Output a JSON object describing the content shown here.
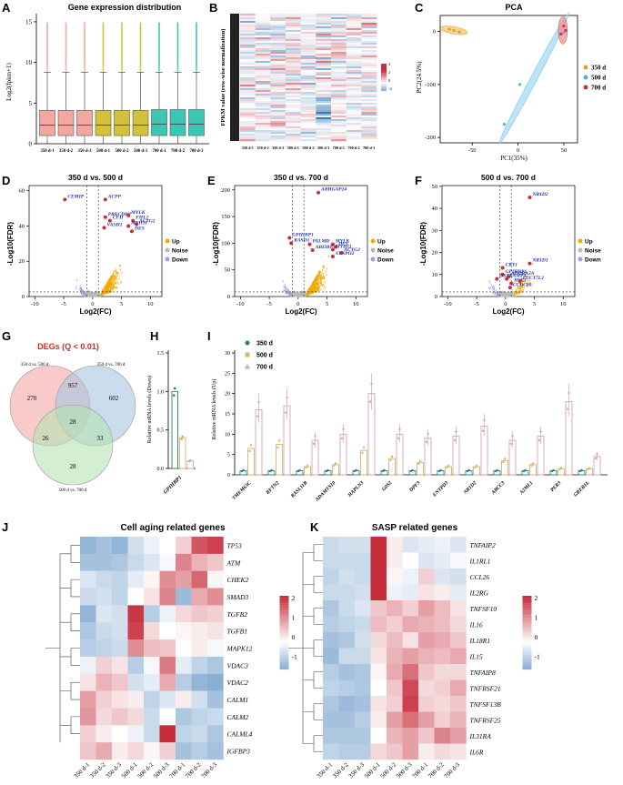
{
  "colors": {
    "s350": "#f4a6a0",
    "s500": "#d4c13a",
    "s700": "#3cc7b5",
    "up": "#f2a900",
    "noise": "#b8b8b8",
    "down": "#a89be0",
    "hiRed": "#c72e3c",
    "hiBlue": "#2e6db0",
    "label": "#1e2fb0"
  },
  "panels": {
    "A": "A",
    "B": "B",
    "C": "C",
    "D": "D",
    "E": "E",
    "F": "F",
    "G": "G",
    "H": "H",
    "I": "I",
    "J": "J",
    "K": "K"
  },
  "sample_labels": [
    "350 d-1",
    "350 d-2",
    "350 d-3",
    "500 d-1",
    "500 d-2",
    "500 d-3",
    "700 d-1",
    "700 d-2",
    "700 d-3"
  ],
  "chart_data": [
    {
      "panel": "A",
      "type": "box",
      "title": "Gene expression distribution",
      "ylabel": "Log2(fpkm+1)",
      "yticks": [
        "0",
        "5",
        "10",
        "15"
      ],
      "ylim": [
        0,
        16
      ],
      "categories": [
        "350 d-1",
        "350 d-2",
        "350 d-3",
        "500 d-1",
        "500 d-2",
        "500 d-3",
        "700 d-1",
        "700 d-2",
        "700 d-3"
      ],
      "q1": [
        1.0,
        1.0,
        1.0,
        1.0,
        1.0,
        1.0,
        1.0,
        1.0,
        1.0
      ],
      "median": [
        2.3,
        2.3,
        2.3,
        2.3,
        2.3,
        2.3,
        2.4,
        2.4,
        2.4
      ],
      "q3": [
        4.1,
        4.1,
        4.1,
        4.1,
        4.1,
        4.1,
        4.2,
        4.2,
        4.2
      ],
      "whisker": [
        0,
        8.8
      ]
    },
    {
      "panel": "B",
      "type": "heatmap",
      "ylabel": "FPKM value (row-wise normalization)",
      "legend": [
        "4",
        "2",
        "0",
        "-2"
      ]
    },
    {
      "panel": "C",
      "type": "scatter",
      "title": "PCA",
      "xlabel": "PC1(35%)",
      "ylabel": "PC2(24.5%)",
      "xticks": [
        "-50",
        "0",
        "50"
      ],
      "yticks": [
        "0",
        "-100",
        "-200"
      ],
      "xlim": [
        -85,
        65
      ],
      "ylim": [
        -210,
        30
      ],
      "series": [
        {
          "name": "350 d",
          "points": [
            [
              -75,
              4
            ],
            [
              -70,
              2
            ],
            [
              -64,
              -1
            ]
          ]
        },
        {
          "name": "500 d",
          "points": [
            [
              -15,
              -175
            ],
            [
              2,
              -100
            ],
            [
              50,
              -2
            ]
          ]
        },
        {
          "name": "700 d",
          "points": [
            [
              47,
              -5
            ],
            [
              50,
              10
            ],
            [
              52,
              2
            ]
          ]
        }
      ]
    },
    {
      "panel": "D",
      "type": "volcano",
      "title": "350 d vs. 500 d",
      "xlabel": "Log2(FC)",
      "ylabel": "-Log10(FDR)",
      "xticks": [
        "-10",
        "-5",
        "0",
        "5",
        "10"
      ],
      "yticks": [
        "0",
        "20",
        "40",
        "60"
      ],
      "xlim": [
        -11,
        12
      ],
      "ylim": [
        0,
        65
      ],
      "genes": [
        {
          "name": "CEMIP",
          "x": -4.8,
          "y": 55
        },
        {
          "name": "ACPP",
          "x": 2.2,
          "y": 55
        },
        {
          "name": "PRKCDBP",
          "x": 2.2,
          "y": 45
        },
        {
          "name": "CFH",
          "x": 3.0,
          "y": 43
        },
        {
          "name": "MYLK",
          "x": 6.2,
          "y": 46
        },
        {
          "name": "FHL2",
          "x": 7.0,
          "y": 43
        },
        {
          "name": "ACTG2",
          "x": 7.6,
          "y": 41
        },
        {
          "name": "VASH1",
          "x": 2.0,
          "y": 39
        },
        {
          "name": "MYH11",
          "x": 6.2,
          "y": 40
        },
        {
          "name": "DES",
          "x": 6.8,
          "y": 37
        }
      ]
    },
    {
      "panel": "E",
      "type": "volcano",
      "title": "350 d vs. 700 d",
      "xlabel": "Log2(FC)",
      "ylabel": "-Log10(FDR)",
      "xticks": [
        "-10",
        "-5",
        "0",
        "5",
        "10"
      ],
      "yticks": [
        "0",
        "50",
        "100",
        "150",
        "200"
      ],
      "xlim": [
        -11,
        12
      ],
      "ylim": [
        0,
        215
      ],
      "genes": [
        {
          "name": "ARHGAP24",
          "x": 3.5,
          "y": 195
        },
        {
          "name": "GPIHBP1",
          "x": -1.5,
          "y": 110
        },
        {
          "name": "RASD1",
          "x": -1.2,
          "y": 100
        },
        {
          "name": "PALMD",
          "x": 2.0,
          "y": 98
        },
        {
          "name": "MYLK",
          "x": 6.0,
          "y": 98
        },
        {
          "name": "DES",
          "x": 6.5,
          "y": 93
        },
        {
          "name": "ABI3BP",
          "x": 2.5,
          "y": 87
        },
        {
          "name": "MYH11",
          "x": 6.0,
          "y": 88
        },
        {
          "name": "ACTG2",
          "x": 7.5,
          "y": 82
        },
        {
          "name": "SYNPO2",
          "x": 6.0,
          "y": 75
        }
      ]
    },
    {
      "panel": "F",
      "type": "volcano",
      "title": "500 d vs. 700 d",
      "xlabel": "Log2(FC)",
      "ylabel": "-Log10(FDR)",
      "xticks": [
        "-10",
        "-5",
        "0",
        "5",
        "10"
      ],
      "yticks": [
        "0",
        "10",
        "20",
        "30",
        "40",
        "50"
      ],
      "xlim": [
        -11,
        12
      ],
      "ylim": [
        0,
        52
      ],
      "genes": [
        {
          "name": "NR1D2",
          "x": 4.2,
          "y": 45
        },
        {
          "name": "NR1D1",
          "x": 4.2,
          "y": 15
        },
        {
          "name": "CRY1",
          "x": -0.5,
          "y": 13
        },
        {
          "name": "GPIHBP1",
          "x": -0.5,
          "y": 10
        },
        {
          "name": "ADORA2A",
          "x": 0.5,
          "y": 9
        },
        {
          "name": "OSTN",
          "x": -1.5,
          "y": 8
        },
        {
          "name": "LAMP3",
          "x": 0.2,
          "y": 8
        },
        {
          "name": "HSL1",
          "x": 1.0,
          "y": 6
        },
        {
          "name": "LUCT7L3",
          "x": 2.5,
          "y": 7
        },
        {
          "name": "CCDC80",
          "x": 0.8,
          "y": 4
        }
      ]
    },
    {
      "panel": "G",
      "type": "venn",
      "title": "DEGs (Q < 0.01)",
      "sets": [
        "350 d vs. 500 d",
        "350 d vs. 700 d",
        "500 d vs. 700 d"
      ],
      "regions": {
        "only1": "270",
        "only2": "602",
        "only3": "28",
        "ab": "957",
        "ac": "26",
        "bc": "33",
        "abc": "28"
      }
    },
    {
      "panel": "H",
      "type": "bar",
      "ylabel": "Relative mRNA levels (Down)",
      "categories": [
        "GPIHBP1"
      ],
      "yticks": [
        "0.0",
        "0.5",
        "1.0",
        "1.5"
      ],
      "ylim": [
        0,
        1.5
      ],
      "series": [
        {
          "name": "350 d",
          "values": [
            1.0
          ]
        },
        {
          "name": "500 d",
          "values": [
            0.4
          ]
        },
        {
          "name": "700 d",
          "values": [
            0.1
          ]
        }
      ]
    },
    {
      "panel": "I",
      "type": "bar",
      "ylabel": "Relative mRNA levels (Up)",
      "yticks": [
        "0",
        "5",
        "10",
        "15",
        "20",
        "25",
        "30"
      ],
      "ylim": [
        0,
        30
      ],
      "categories": [
        "TMEM63C",
        "RFTN2",
        "RASL11B",
        "ADAMTS10",
        "HAPLN3",
        "G0S2",
        "DPF3",
        "ENTPD3",
        "NR1D2",
        "ABCC3",
        "A2ML1",
        "PER3",
        "GREB1L"
      ],
      "series": [
        {
          "name": "350 d",
          "values": [
            1,
            1,
            1,
            1,
            1,
            1,
            1,
            1,
            1,
            1,
            1,
            1,
            1
          ]
        },
        {
          "name": "500 d",
          "values": [
            6.5,
            7.5,
            2,
            2.5,
            6,
            4,
            3,
            2,
            2,
            3.5,
            2.5,
            1.5,
            1.5
          ]
        },
        {
          "name": "700 d",
          "values": [
            16,
            17,
            8.5,
            10,
            20,
            10,
            9,
            9.5,
            12,
            8.5,
            9.5,
            18,
            4.5
          ]
        }
      ]
    },
    {
      "panel": "J",
      "type": "heatmap",
      "title": "Cell aging related genes",
      "legend": [
        "2",
        "1",
        "0",
        "-1"
      ],
      "rows": [
        "TP53",
        "ATM",
        "CHEK2",
        "SMAD3",
        "TGFB2",
        "TGFB1",
        "MAPK12",
        "VDAC3",
        "VDAC2",
        "CALM1",
        "CALM2",
        "CALML4",
        "IGFBP3"
      ],
      "values": [
        [
          -1.2,
          -1.0,
          -1.2,
          -0.5,
          -0.2,
          0.0,
          0.5,
          1.8,
          2.0
        ],
        [
          -1.0,
          -1.0,
          -0.9,
          -0.6,
          -0.4,
          -0.1,
          1.3,
          0.8,
          0.6
        ],
        [
          -0.4,
          -0.6,
          -0.7,
          -0.3,
          0.1,
          1.2,
          1.0,
          1.6,
          0.1
        ],
        [
          -0.6,
          -0.5,
          -0.7,
          0.0,
          0.3,
          1.3,
          -1.1,
          0.9,
          1.2
        ],
        [
          -1.2,
          -0.4,
          -0.5,
          2.1,
          -0.8,
          -0.2,
          0.4,
          0.6,
          0.5
        ],
        [
          -0.9,
          -0.6,
          -0.5,
          2.0,
          0.4,
          0.0,
          0.1,
          0.2,
          0.3
        ],
        [
          -0.8,
          -0.7,
          -0.6,
          1.2,
          0.7,
          0.6,
          0.0,
          0.2,
          -0.1
        ],
        [
          -0.2,
          0.5,
          0.3,
          -0.8,
          -0.1,
          1.4,
          -0.3,
          -0.7,
          -0.9
        ],
        [
          0.3,
          0.8,
          0.6,
          -0.5,
          -0.3,
          0.9,
          -0.8,
          -1.2,
          -1.3
        ],
        [
          1.0,
          0.5,
          0.3,
          0.2,
          -0.7,
          -0.4,
          0.2,
          -0.5,
          -1.0
        ],
        [
          1.1,
          0.4,
          0.6,
          0.4,
          -0.6,
          0.0,
          -0.9,
          -0.7,
          -0.6
        ],
        [
          0.5,
          0.2,
          0.0,
          -0.2,
          -0.6,
          2.3,
          -0.7,
          -0.6,
          -0.9
        ],
        [
          0.6,
          0.9,
          0.2,
          0.4,
          0.1,
          0.5,
          -1.0,
          -0.8,
          -1.0
        ]
      ]
    },
    {
      "panel": "K",
      "type": "heatmap",
      "title": "SASP related genes",
      "legend": [
        "2",
        "1",
        "0",
        "-1"
      ],
      "rows": [
        "TNFAIP2",
        "IL1RL1",
        "CCL26",
        "IL2RG",
        "TNFSF10",
        "IL16",
        "IL18R1",
        "IL15",
        "TNFAIP8",
        "TNFRSF21",
        "TNFSF13B",
        "TNFRSF25",
        "IL31RA",
        "IL6R"
      ],
      "values": [
        [
          -0.6,
          -0.5,
          -0.5,
          2.2,
          0.2,
          -0.4,
          -0.3,
          -0.2,
          -0.4
        ],
        [
          -0.6,
          -0.6,
          -0.6,
          2.3,
          0.2,
          0.0,
          -0.4,
          -0.3,
          -0.1
        ],
        [
          -0.7,
          -0.5,
          -0.6,
          2.4,
          0.1,
          -0.2,
          0.5,
          -0.4,
          -0.5
        ],
        [
          -0.6,
          -0.6,
          -0.5,
          2.3,
          -0.2,
          -0.3,
          0.3,
          0.2,
          -0.3
        ],
        [
          -0.9,
          -0.6,
          -0.4,
          0.6,
          0.8,
          0.5,
          1.0,
          0.7,
          0.3
        ],
        [
          -0.8,
          -0.7,
          -0.6,
          0.7,
          0.5,
          0.9,
          0.8,
          0.7,
          0.4
        ],
        [
          -1.0,
          -0.9,
          -0.5,
          0.4,
          0.7,
          0.3,
          1.0,
          0.9,
          0.6
        ],
        [
          -1.1,
          -0.6,
          -0.6,
          0.3,
          0.8,
          1.0,
          0.8,
          0.7,
          0.9
        ],
        [
          -0.8,
          -1.0,
          -0.9,
          0.1,
          0.9,
          1.5,
          0.6,
          0.4,
          0.4
        ],
        [
          -0.7,
          -0.8,
          -0.9,
          0.0,
          0.6,
          1.9,
          0.4,
          0.5,
          0.9
        ],
        [
          -0.9,
          -1.1,
          -1.0,
          0.3,
          0.5,
          2.0,
          0.5,
          0.4,
          0.6
        ],
        [
          -1.0,
          -1.0,
          -0.8,
          0.2,
          1.0,
          1.5,
          1.0,
          0.5,
          0.8
        ],
        [
          -0.9,
          -0.9,
          -0.9,
          0.0,
          0.8,
          1.0,
          0.6,
          1.3,
          1.0
        ],
        [
          -0.7,
          -0.8,
          -0.8,
          0.4,
          0.6,
          1.0,
          0.2,
          0.4,
          0.3
        ]
      ]
    }
  ]
}
